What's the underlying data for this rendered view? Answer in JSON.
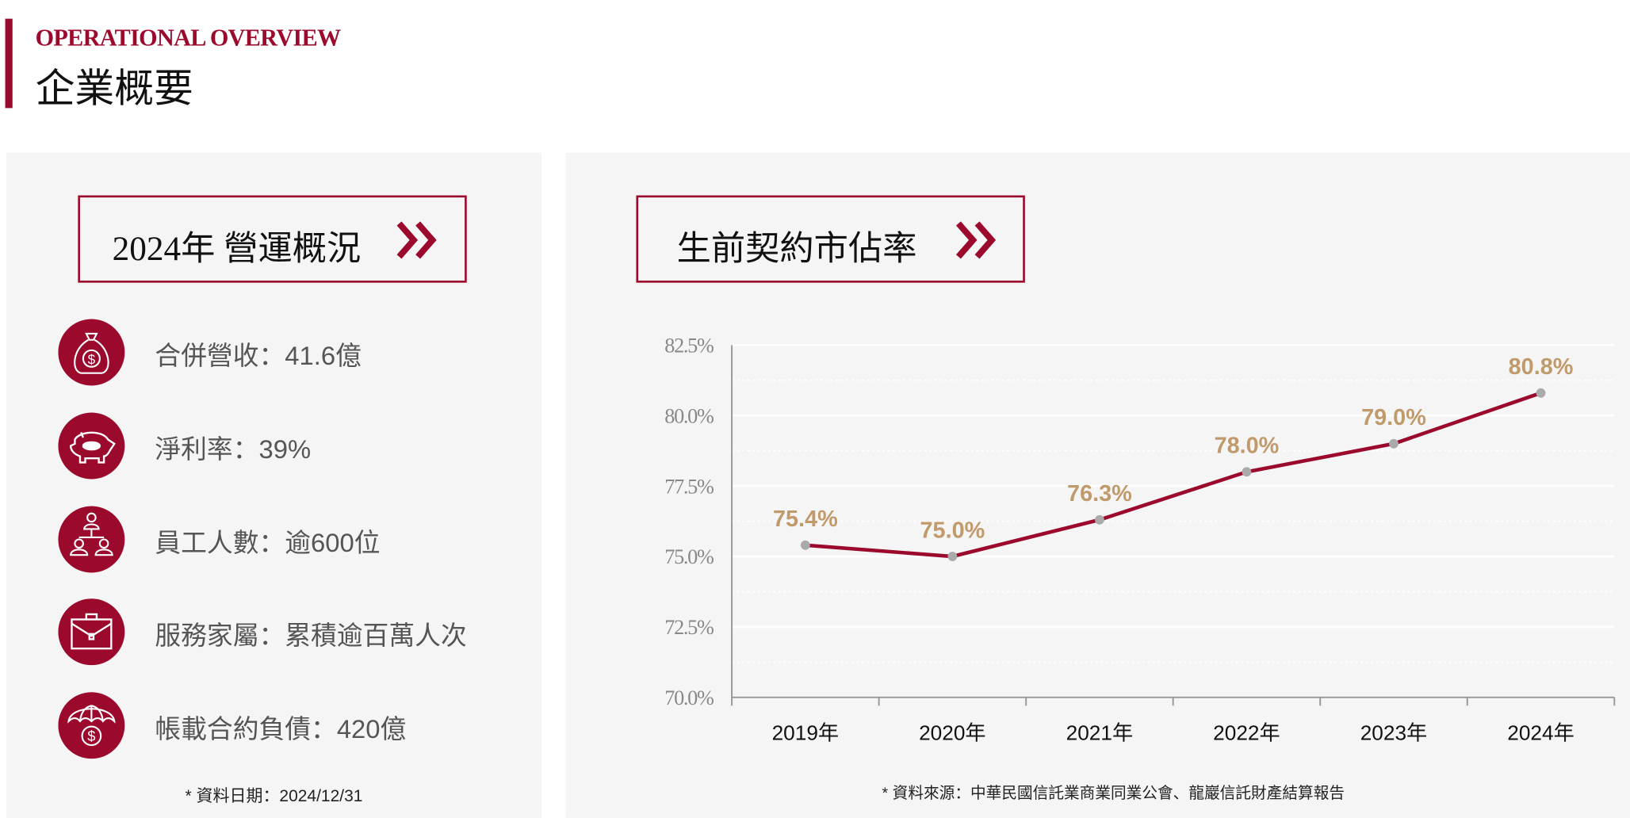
{
  "header": {
    "en_title": "OPERATIONAL OVERVIEW",
    "zh_title": "企業概要"
  },
  "colors": {
    "brand": "#9b0a2d",
    "label_gold": "#c09a6b",
    "panel_bg": "#f5f5f5",
    "marker": "#aaaaaa"
  },
  "left": {
    "heading": "2024年 營運概況",
    "heading_icon": "double-chevron-right-icon",
    "items": [
      {
        "icon": "money-bag-icon",
        "text": "合併營收：41.6億"
      },
      {
        "icon": "piggy-bank-icon",
        "text": "淨利率：39%"
      },
      {
        "icon": "org-chart-people-icon",
        "text": "員工人數：逾600位"
      },
      {
        "icon": "briefcase-icon",
        "text": "服務家屬：累積逾百萬人次"
      },
      {
        "icon": "umbrella-money-icon",
        "text": "帳載合約負債：420億"
      }
    ],
    "footnote": "* 資料日期：2024/12/31"
  },
  "right": {
    "heading": "生前契約市佔率",
    "heading_icon": "double-chevron-right-icon",
    "footnote": "* 資料來源：中華民國信託業商業同業公會、龍巖信託財產結算報告"
  },
  "chart_data": {
    "type": "line",
    "categories": [
      "2019年",
      "2020年",
      "2021年",
      "2022年",
      "2023年",
      "2024年"
    ],
    "values": [
      75.4,
      75.0,
      76.3,
      78.0,
      79.0,
      80.8
    ],
    "data_labels": [
      "75.4%",
      "75.0%",
      "76.3%",
      "78.0%",
      "79.0%",
      "80.8%"
    ],
    "yticks": [
      "70.0%",
      "72.5%",
      "75.0%",
      "77.5%",
      "80.0%",
      "82.5%"
    ],
    "ylim": [
      70,
      82.5
    ],
    "grid": true,
    "legend": "none"
  }
}
